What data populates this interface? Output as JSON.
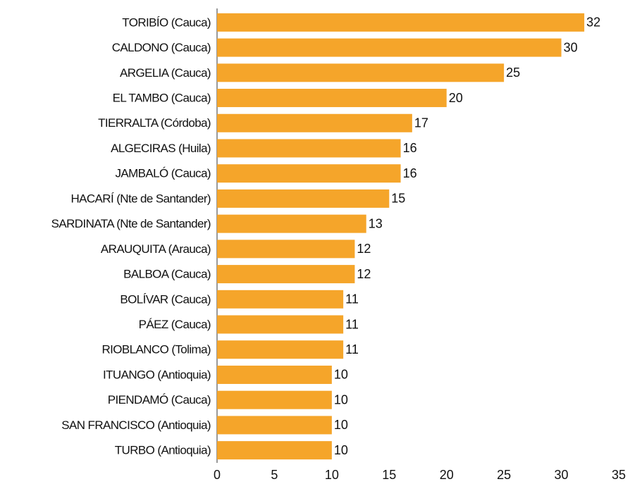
{
  "chart_data": {
    "type": "bar",
    "orientation": "horizontal",
    "categories": [
      "TORIBÍO (Cauca)",
      "CALDONO (Cauca)",
      "ARGELIA (Cauca)",
      "EL TAMBO (Cauca)",
      "TIERRALTA (Córdoba)",
      "ALGECIRAS (Huila)",
      "JAMBALÓ (Cauca)",
      "HACARÍ (Nte de Santander)",
      "SARDINATA (Nte de Santander)",
      "ARAUQUITA (Arauca)",
      "BALBOA (Cauca)",
      "BOLÍVAR (Cauca)",
      "PÁEZ (Cauca)",
      "RIOBLANCO (Tolima)",
      "ITUANGO (Antioquia)",
      "PIENDAMÓ (Cauca)",
      "SAN FRANCISCO (Antioquia)",
      "TURBO (Antioquia)"
    ],
    "values": [
      32,
      30,
      25,
      20,
      17,
      16,
      16,
      15,
      13,
      12,
      12,
      11,
      11,
      11,
      10,
      10,
      10,
      10
    ],
    "color": "#f5a52a",
    "xlim": [
      0,
      35
    ],
    "xticks": [
      0,
      5,
      10,
      15,
      20,
      25,
      30,
      35
    ]
  }
}
